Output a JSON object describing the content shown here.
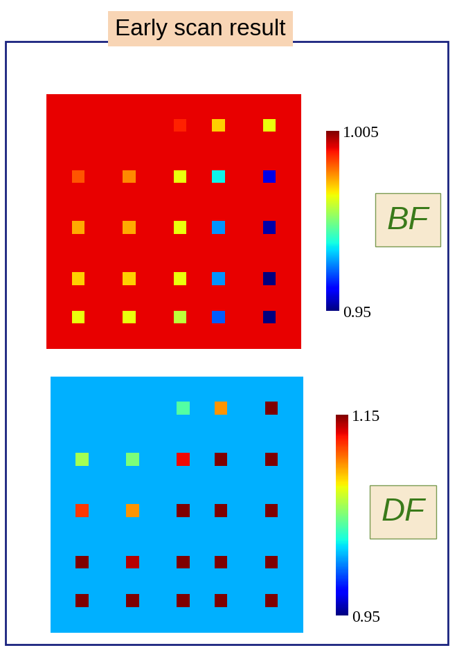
{
  "title": "Early scan result",
  "chart_data": [
    {
      "type": "heatmap",
      "name": "BF",
      "tick_labels": false,
      "colorbar": {
        "range": [
          0.95,
          1.005
        ],
        "ticks": [
          0.95,
          1.005
        ]
      },
      "cells": [
        [
          1.0,
          1.0,
          1.0,
          1.0,
          1.0,
          1.0,
          1.0,
          1.0,
          1.0,
          1.0,
          1.0,
          1.0,
          1.0,
          1.0,
          1.0,
          1.0,
          1.0,
          1.0,
          1.0,
          1.0
        ],
        [
          1.0,
          1.0,
          1.0,
          1.0,
          1.0,
          1.0,
          1.0,
          1.0,
          1.0,
          1.0,
          1.0,
          1.0,
          1.0,
          1.0,
          1.0,
          1.0,
          1.0,
          1.0,
          1.0,
          1.0
        ],
        [
          1.0,
          1.0,
          1.0,
          1.0,
          1.0,
          1.0,
          1.0,
          1.0,
          1.0,
          1.0,
          0.998,
          1.0,
          1.0,
          0.988,
          1.0,
          1.0,
          1.0,
          0.985,
          1.0,
          1.0
        ],
        [
          1.0,
          1.0,
          1.0,
          1.0,
          1.0,
          1.0,
          1.0,
          1.0,
          1.0,
          1.0,
          1.0,
          1.0,
          1.0,
          1.0,
          1.0,
          1.0,
          1.0,
          1.0,
          1.0,
          1.0
        ],
        [
          1.0,
          1.0,
          1.0,
          1.0,
          1.0,
          1.0,
          1.0,
          1.0,
          1.0,
          1.0,
          1.0,
          1.0,
          1.0,
          1.0,
          1.0,
          1.0,
          1.0,
          1.0,
          1.0,
          1.0
        ],
        [
          1.0,
          1.0,
          1.0,
          1.0,
          1.0,
          1.0,
          1.0,
          1.0,
          1.0,
          1.0,
          1.0,
          1.0,
          1.0,
          1.0,
          1.0,
          1.0,
          1.0,
          1.0,
          1.0,
          1.0
        ],
        [
          1.0,
          1.0,
          0.995,
          1.0,
          1.0,
          1.0,
          0.992,
          1.0,
          1.0,
          1.0,
          0.985,
          1.0,
          1.0,
          0.97,
          1.0,
          1.0,
          1.0,
          0.955,
          1.0,
          1.0
        ],
        [
          1.0,
          1.0,
          1.0,
          1.0,
          1.0,
          1.0,
          1.0,
          1.0,
          1.0,
          1.0,
          1.0,
          1.0,
          1.0,
          1.0,
          1.0,
          1.0,
          1.0,
          1.0,
          1.0,
          1.0
        ],
        [
          1.0,
          1.0,
          1.0,
          1.0,
          1.0,
          1.0,
          1.0,
          1.0,
          1.0,
          1.0,
          1.0,
          1.0,
          1.0,
          1.0,
          1.0,
          1.0,
          1.0,
          1.0,
          1.0,
          1.0
        ],
        [
          1.0,
          1.0,
          1.0,
          1.0,
          1.0,
          1.0,
          1.0,
          1.0,
          1.0,
          1.0,
          1.0,
          1.0,
          1.0,
          1.0,
          1.0,
          1.0,
          1.0,
          1.0,
          1.0,
          1.0
        ],
        [
          1.0,
          1.0,
          0.99,
          1.0,
          1.0,
          1.0,
          0.99,
          1.0,
          1.0,
          1.0,
          0.985,
          1.0,
          1.0,
          0.965,
          1.0,
          1.0,
          1.0,
          0.952,
          1.0,
          1.0
        ],
        [
          1.0,
          1.0,
          1.0,
          1.0,
          1.0,
          1.0,
          1.0,
          1.0,
          1.0,
          1.0,
          1.0,
          1.0,
          1.0,
          1.0,
          1.0,
          1.0,
          1.0,
          1.0,
          1.0,
          1.0
        ],
        [
          1.0,
          1.0,
          1.0,
          1.0,
          1.0,
          1.0,
          1.0,
          1.0,
          1.0,
          1.0,
          1.0,
          1.0,
          1.0,
          1.0,
          1.0,
          1.0,
          1.0,
          1.0,
          1.0,
          1.0
        ],
        [
          1.0,
          1.0,
          1.0,
          1.0,
          1.0,
          1.0,
          1.0,
          1.0,
          1.0,
          1.0,
          1.0,
          1.0,
          1.0,
          1.0,
          1.0,
          1.0,
          1.0,
          1.0,
          1.0,
          1.0
        ],
        [
          1.0,
          1.0,
          0.988,
          1.0,
          1.0,
          1.0,
          0.988,
          1.0,
          1.0,
          1.0,
          0.985,
          1.0,
          1.0,
          0.965,
          1.0,
          1.0,
          1.0,
          0.95,
          1.0,
          1.0
        ],
        [
          1.0,
          1.0,
          1.0,
          1.0,
          1.0,
          1.0,
          1.0,
          1.0,
          1.0,
          1.0,
          1.0,
          1.0,
          1.0,
          1.0,
          1.0,
          1.0,
          1.0,
          1.0,
          1.0,
          1.0
        ],
        [
          1.0,
          1.0,
          1.0,
          1.0,
          1.0,
          1.0,
          1.0,
          1.0,
          1.0,
          1.0,
          1.0,
          1.0,
          1.0,
          1.0,
          1.0,
          1.0,
          1.0,
          1.0,
          1.0,
          1.0
        ],
        [
          1.0,
          1.0,
          0.985,
          1.0,
          1.0,
          1.0,
          0.985,
          1.0,
          1.0,
          1.0,
          0.982,
          1.0,
          1.0,
          0.962,
          1.0,
          1.0,
          1.0,
          0.95,
          1.0,
          1.0
        ],
        [
          1.0,
          1.0,
          1.0,
          1.0,
          1.0,
          1.0,
          1.0,
          1.0,
          1.0,
          1.0,
          1.0,
          1.0,
          1.0,
          1.0,
          1.0,
          1.0,
          1.0,
          1.0,
          1.0,
          1.0
        ],
        [
          1.0,
          1.0,
          1.0,
          1.0,
          1.0,
          1.0,
          1.0,
          1.0,
          1.0,
          1.0,
          1.0,
          1.0,
          1.0,
          1.0,
          1.0,
          1.0,
          1.0,
          1.0,
          1.0,
          1.0
        ]
      ]
    },
    {
      "type": "heatmap",
      "name": "DF",
      "tick_labels": false,
      "colorbar": {
        "range": [
          0.95,
          1.15
        ],
        "ticks": [
          0.95,
          1.15
        ]
      },
      "cells": [
        [
          1.01,
          1.01,
          1.01,
          1.01,
          1.01,
          1.01,
          1.01,
          1.01,
          1.01,
          1.01,
          1.01,
          1.01,
          1.01,
          1.01,
          1.01,
          1.01,
          1.01,
          1.01,
          1.01,
          1.01
        ],
        [
          1.01,
          1.01,
          1.01,
          1.01,
          1.01,
          1.01,
          1.01,
          1.01,
          1.01,
          1.01,
          1.01,
          1.01,
          1.01,
          1.01,
          1.01,
          1.01,
          1.01,
          1.01,
          1.01,
          1.01
        ],
        [
          1.01,
          1.01,
          1.01,
          1.01,
          1.01,
          1.01,
          1.01,
          1.01,
          1.01,
          1.01,
          1.04,
          1.01,
          1.01,
          1.1,
          1.01,
          1.01,
          1.01,
          1.15,
          1.01,
          1.01
        ],
        [
          1.01,
          1.01,
          1.01,
          1.01,
          1.01,
          1.01,
          1.01,
          1.01,
          1.01,
          1.01,
          1.01,
          1.01,
          1.01,
          1.01,
          1.01,
          1.01,
          1.01,
          1.01,
          1.01,
          1.01
        ],
        [
          1.01,
          1.01,
          1.01,
          1.01,
          1.01,
          1.01,
          1.01,
          1.01,
          1.01,
          1.01,
          1.01,
          1.01,
          1.01,
          1.01,
          1.01,
          1.01,
          1.01,
          1.01,
          1.01,
          1.01
        ],
        [
          1.01,
          1.01,
          1.01,
          1.01,
          1.01,
          1.01,
          1.01,
          1.01,
          1.01,
          1.01,
          1.01,
          1.01,
          1.01,
          1.01,
          1.01,
          1.01,
          1.01,
          1.01,
          1.01,
          1.01
        ],
        [
          1.01,
          1.01,
          1.06,
          1.01,
          1.01,
          1.01,
          1.05,
          1.01,
          1.01,
          1.01,
          1.13,
          1.01,
          1.01,
          1.15,
          1.01,
          1.01,
          1.01,
          1.15,
          1.01,
          1.01
        ],
        [
          1.01,
          1.01,
          1.01,
          1.01,
          1.01,
          1.01,
          1.01,
          1.01,
          1.01,
          1.01,
          1.01,
          1.01,
          1.01,
          1.01,
          1.01,
          1.01,
          1.01,
          1.01,
          1.01,
          1.01
        ],
        [
          1.01,
          1.01,
          1.01,
          1.01,
          1.01,
          1.01,
          1.01,
          1.01,
          1.01,
          1.01,
          1.01,
          1.01,
          1.01,
          1.01,
          1.01,
          1.01,
          1.01,
          1.01,
          1.01,
          1.01
        ],
        [
          1.01,
          1.01,
          1.01,
          1.01,
          1.01,
          1.01,
          1.01,
          1.01,
          1.01,
          1.01,
          1.01,
          1.01,
          1.01,
          1.01,
          1.01,
          1.01,
          1.01,
          1.01,
          1.01,
          1.01
        ],
        [
          1.01,
          1.01,
          1.12,
          1.01,
          1.01,
          1.01,
          1.1,
          1.01,
          1.01,
          1.01,
          1.15,
          1.01,
          1.01,
          1.15,
          1.01,
          1.01,
          1.01,
          1.15,
          1.01,
          1.01
        ],
        [
          1.01,
          1.01,
          1.01,
          1.01,
          1.01,
          1.01,
          1.01,
          1.01,
          1.01,
          1.01,
          1.01,
          1.01,
          1.01,
          1.01,
          1.01,
          1.01,
          1.01,
          1.01,
          1.01,
          1.01
        ],
        [
          1.01,
          1.01,
          1.01,
          1.01,
          1.01,
          1.01,
          1.01,
          1.01,
          1.01,
          1.01,
          1.01,
          1.01,
          1.01,
          1.01,
          1.01,
          1.01,
          1.01,
          1.01,
          1.01,
          1.01
        ],
        [
          1.01,
          1.01,
          1.01,
          1.01,
          1.01,
          1.01,
          1.01,
          1.01,
          1.01,
          1.01,
          1.01,
          1.01,
          1.01,
          1.01,
          1.01,
          1.01,
          1.01,
          1.01,
          1.01,
          1.01
        ],
        [
          1.01,
          1.01,
          1.15,
          1.01,
          1.01,
          1.01,
          1.14,
          1.01,
          1.01,
          1.01,
          1.15,
          1.01,
          1.01,
          1.15,
          1.01,
          1.01,
          1.01,
          1.15,
          1.01,
          1.01
        ],
        [
          1.01,
          1.01,
          1.01,
          1.01,
          1.01,
          1.01,
          1.01,
          1.01,
          1.01,
          1.01,
          1.01,
          1.01,
          1.01,
          1.01,
          1.01,
          1.01,
          1.01,
          1.01,
          1.01,
          1.01
        ],
        [
          1.01,
          1.01,
          1.01,
          1.01,
          1.01,
          1.01,
          1.01,
          1.01,
          1.01,
          1.01,
          1.01,
          1.01,
          1.01,
          1.01,
          1.01,
          1.01,
          1.01,
          1.01,
          1.01,
          1.01
        ],
        [
          1.01,
          1.01,
          1.15,
          1.01,
          1.01,
          1.01,
          1.15,
          1.01,
          1.01,
          1.01,
          1.15,
          1.01,
          1.01,
          1.15,
          1.01,
          1.01,
          1.01,
          1.15,
          1.01,
          1.01
        ],
        [
          1.01,
          1.01,
          1.01,
          1.01,
          1.01,
          1.01,
          1.01,
          1.01,
          1.01,
          1.01,
          1.01,
          1.01,
          1.01,
          1.01,
          1.01,
          1.01,
          1.01,
          1.01,
          1.01,
          1.01
        ],
        [
          1.01,
          1.01,
          1.01,
          1.01,
          1.01,
          1.01,
          1.01,
          1.01,
          1.01,
          1.01,
          1.01,
          1.01,
          1.01,
          1.01,
          1.01,
          1.01,
          1.01,
          1.01,
          1.01,
          1.01
        ]
      ]
    }
  ]
}
